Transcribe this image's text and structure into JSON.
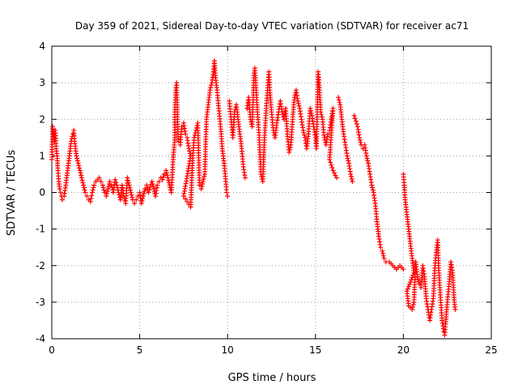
{
  "chart_data": {
    "type": "scatter",
    "title": "Day 359 of 2021, Sidereal Day-to-day VTEC variation (SDTVAR) for receiver ac71",
    "xlabel": "GPS time / hours",
    "ylabel": "SDTVAR / TECUs",
    "xlim": [
      0,
      25
    ],
    "ylim": [
      -4,
      4
    ],
    "xticks": [
      0,
      5,
      10,
      15,
      20,
      25
    ],
    "yticks": [
      -4,
      -3,
      -2,
      -1,
      0,
      1,
      2,
      3,
      4
    ],
    "grid": true,
    "marker": "plus",
    "color": "#ff0000",
    "series": [
      {
        "name": "SDTVAR",
        "points": [
          [
            0.0,
            0.9
          ],
          [
            0.05,
            1.8
          ],
          [
            0.1,
            1.6
          ],
          [
            0.15,
            1.4
          ],
          [
            0.2,
            1.7
          ],
          [
            0.25,
            1.2
          ],
          [
            0.3,
            1.0
          ],
          [
            0.35,
            0.6
          ],
          [
            0.4,
            0.3
          ],
          [
            0.45,
            0.1
          ],
          [
            0.5,
            0.0
          ],
          [
            0.55,
            -0.1
          ],
          [
            0.6,
            -0.2
          ],
          [
            0.7,
            -0.1
          ],
          [
            0.8,
            0.2
          ],
          [
            0.9,
            0.6
          ],
          [
            1.0,
            1.0
          ],
          [
            1.1,
            1.4
          ],
          [
            1.2,
            1.6
          ],
          [
            1.25,
            1.7
          ],
          [
            1.3,
            1.4
          ],
          [
            1.4,
            1.0
          ],
          [
            1.5,
            0.8
          ],
          [
            1.6,
            0.6
          ],
          [
            1.7,
            0.4
          ],
          [
            1.8,
            0.2
          ],
          [
            1.9,
            0.0
          ],
          [
            2.0,
            -0.1
          ],
          [
            2.1,
            -0.2
          ],
          [
            2.2,
            -0.25
          ],
          [
            2.3,
            0.0
          ],
          [
            2.4,
            0.2
          ],
          [
            2.5,
            0.3
          ],
          [
            2.6,
            0.35
          ],
          [
            2.7,
            0.4
          ],
          [
            2.8,
            0.3
          ],
          [
            2.9,
            0.2
          ],
          [
            3.0,
            0.0
          ],
          [
            3.1,
            -0.1
          ],
          [
            3.2,
            0.1
          ],
          [
            3.3,
            0.3
          ],
          [
            3.4,
            0.2
          ],
          [
            3.5,
            0.0
          ],
          [
            3.6,
            0.35
          ],
          [
            3.7,
            0.2
          ],
          [
            3.8,
            0.0
          ],
          [
            3.9,
            -0.2
          ],
          [
            4.0,
            0.2
          ],
          [
            4.1,
            -0.1
          ],
          [
            4.2,
            -0.3
          ],
          [
            4.3,
            0.4
          ],
          [
            4.4,
            0.2
          ],
          [
            4.5,
            0.0
          ],
          [
            4.6,
            -0.2
          ],
          [
            4.7,
            -0.3
          ],
          [
            4.8,
            -0.2
          ],
          [
            4.9,
            -0.1
          ],
          [
            5.0,
            0.0
          ],
          [
            5.1,
            -0.3
          ],
          [
            5.2,
            -0.1
          ],
          [
            5.3,
            0.1
          ],
          [
            5.4,
            0.2
          ],
          [
            5.5,
            0.0
          ],
          [
            5.6,
            0.15
          ],
          [
            5.7,
            0.3
          ],
          [
            5.8,
            0.1
          ],
          [
            5.9,
            -0.1
          ],
          [
            6.0,
            0.2
          ],
          [
            6.1,
            0.3
          ],
          [
            6.2,
            0.4
          ],
          [
            6.3,
            0.35
          ],
          [
            6.4,
            0.5
          ],
          [
            6.5,
            0.6
          ],
          [
            6.6,
            0.4
          ],
          [
            6.7,
            0.2
          ],
          [
            6.8,
            0.0
          ],
          [
            6.9,
            0.9
          ],
          [
            7.0,
            1.5
          ],
          [
            7.0,
            2.2
          ],
          [
            7.05,
            2.8
          ],
          [
            7.1,
            3.0
          ],
          [
            7.15,
            2.0
          ],
          [
            7.2,
            1.4
          ],
          [
            7.3,
            1.3
          ],
          [
            7.4,
            1.8
          ],
          [
            7.5,
            1.9
          ],
          [
            7.6,
            1.6
          ],
          [
            7.7,
            1.5
          ],
          [
            7.8,
            1.2
          ],
          [
            7.9,
            1.0
          ],
          [
            7.5,
            -0.1
          ],
          [
            7.7,
            -0.25
          ],
          [
            7.9,
            -0.4
          ],
          [
            8.0,
            0.8
          ],
          [
            8.1,
            1.5
          ],
          [
            8.2,
            1.7
          ],
          [
            8.3,
            1.9
          ],
          [
            8.4,
            0.2
          ],
          [
            8.5,
            0.1
          ],
          [
            8.6,
            0.3
          ],
          [
            8.7,
            0.5
          ],
          [
            8.8,
            2.0
          ],
          [
            8.9,
            2.4
          ],
          [
            9.0,
            2.8
          ],
          [
            9.1,
            3.0
          ],
          [
            9.2,
            3.3
          ],
          [
            9.25,
            3.6
          ],
          [
            9.3,
            3.2
          ],
          [
            9.4,
            2.8
          ],
          [
            9.5,
            2.3
          ],
          [
            9.6,
            1.8
          ],
          [
            9.7,
            1.2
          ],
          [
            9.8,
            0.8
          ],
          [
            9.9,
            0.3
          ],
          [
            9.95,
            0.0
          ],
          [
            10.0,
            -0.1
          ],
          [
            10.1,
            2.5
          ],
          [
            10.2,
            2.0
          ],
          [
            10.3,
            1.5
          ],
          [
            10.4,
            2.2
          ],
          [
            10.5,
            2.4
          ],
          [
            10.6,
            2.0
          ],
          [
            10.7,
            1.6
          ],
          [
            10.8,
            1.2
          ],
          [
            10.9,
            0.7
          ],
          [
            11.0,
            0.4
          ],
          [
            11.1,
            2.3
          ],
          [
            11.2,
            2.6
          ],
          [
            11.3,
            2.0
          ],
          [
            11.4,
            1.8
          ],
          [
            11.5,
            3.2
          ],
          [
            11.55,
            3.4
          ],
          [
            11.6,
            3.0
          ],
          [
            11.7,
            2.2
          ],
          [
            11.8,
            1.5
          ],
          [
            11.9,
            0.5
          ],
          [
            12.0,
            0.3
          ],
          [
            12.1,
            1.5
          ],
          [
            12.2,
            2.3
          ],
          [
            12.3,
            3.0
          ],
          [
            12.35,
            3.3
          ],
          [
            12.4,
            2.8
          ],
          [
            12.5,
            2.2
          ],
          [
            12.6,
            1.7
          ],
          [
            12.7,
            1.5
          ],
          [
            12.8,
            1.9
          ],
          [
            12.9,
            2.2
          ],
          [
            13.0,
            2.5
          ],
          [
            13.1,
            2.2
          ],
          [
            13.2,
            2.0
          ],
          [
            13.3,
            2.3
          ],
          [
            13.4,
            1.6
          ],
          [
            13.5,
            1.1
          ],
          [
            13.6,
            1.3
          ],
          [
            13.7,
            2.0
          ],
          [
            13.8,
            2.6
          ],
          [
            13.9,
            2.8
          ],
          [
            14.0,
            2.5
          ],
          [
            14.1,
            2.3
          ],
          [
            14.2,
            2.0
          ],
          [
            14.3,
            1.7
          ],
          [
            14.4,
            1.5
          ],
          [
            14.5,
            1.2
          ],
          [
            14.6,
            1.6
          ],
          [
            14.7,
            2.3
          ],
          [
            14.8,
            2.1
          ],
          [
            14.9,
            1.8
          ],
          [
            15.0,
            1.5
          ],
          [
            15.05,
            1.2
          ],
          [
            15.1,
            2.2
          ],
          [
            15.15,
            3.3
          ],
          [
            15.2,
            3.0
          ],
          [
            15.3,
            2.2
          ],
          [
            15.4,
            2.0
          ],
          [
            15.5,
            1.5
          ],
          [
            15.6,
            1.3
          ],
          [
            15.7,
            1.6
          ],
          [
            15.8,
            1.7
          ],
          [
            15.9,
            2.0
          ],
          [
            16.0,
            2.3
          ],
          [
            15.8,
            0.9
          ],
          [
            16.0,
            0.6
          ],
          [
            16.2,
            0.4
          ],
          [
            16.3,
            2.6
          ],
          [
            16.4,
            2.4
          ],
          [
            16.5,
            2.0
          ],
          [
            16.6,
            1.6
          ],
          [
            16.7,
            1.3
          ],
          [
            16.8,
            1.0
          ],
          [
            16.9,
            0.8
          ],
          [
            17.0,
            0.5
          ],
          [
            17.1,
            0.3
          ],
          [
            17.2,
            2.1
          ],
          [
            17.4,
            1.8
          ],
          [
            17.5,
            1.5
          ],
          [
            17.6,
            1.3
          ],
          [
            17.7,
            1.2
          ],
          [
            17.8,
            1.3
          ],
          [
            17.9,
            1.0
          ],
          [
            18.0,
            0.8
          ],
          [
            18.1,
            0.5
          ],
          [
            18.2,
            0.2
          ],
          [
            18.3,
            0.0
          ],
          [
            18.4,
            -0.3
          ],
          [
            18.5,
            -0.8
          ],
          [
            18.6,
            -1.2
          ],
          [
            18.7,
            -1.5
          ],
          [
            18.8,
            -1.6
          ],
          [
            18.9,
            -1.8
          ],
          [
            19.0,
            -1.9
          ],
          [
            19.2,
            -1.9
          ],
          [
            19.4,
            -2.0
          ],
          [
            19.6,
            -2.1
          ],
          [
            19.8,
            -2.0
          ],
          [
            20.0,
            -2.1
          ],
          [
            20.0,
            0.5
          ],
          [
            20.05,
            0.2
          ],
          [
            20.1,
            -0.2
          ],
          [
            20.2,
            -0.6
          ],
          [
            20.3,
            -1.0
          ],
          [
            20.4,
            -1.4
          ],
          [
            20.5,
            -1.8
          ],
          [
            20.6,
            -2.2
          ],
          [
            20.2,
            -2.7
          ],
          [
            20.3,
            -3.1
          ],
          [
            20.5,
            -3.2
          ],
          [
            20.6,
            -3.0
          ],
          [
            20.7,
            -1.9
          ],
          [
            20.8,
            -2.3
          ],
          [
            20.9,
            -2.5
          ],
          [
            21.0,
            -2.6
          ],
          [
            21.1,
            -2.0
          ],
          [
            21.2,
            -2.3
          ],
          [
            21.3,
            -2.9
          ],
          [
            21.4,
            -3.2
          ],
          [
            21.5,
            -3.5
          ],
          [
            21.6,
            -3.2
          ],
          [
            21.7,
            -2.9
          ],
          [
            21.8,
            -2.0
          ],
          [
            21.9,
            -1.5
          ],
          [
            21.95,
            -1.3
          ],
          [
            22.0,
            -2.0
          ],
          [
            22.1,
            -2.8
          ],
          [
            22.2,
            -3.5
          ],
          [
            22.3,
            -3.8
          ],
          [
            22.35,
            -3.9
          ],
          [
            22.4,
            -3.6
          ],
          [
            22.5,
            -3.0
          ],
          [
            22.6,
            -2.5
          ],
          [
            22.7,
            -1.9
          ],
          [
            22.8,
            -2.2
          ],
          [
            22.85,
            -2.6
          ],
          [
            22.9,
            -3.0
          ],
          [
            22.95,
            -3.2
          ]
        ]
      }
    ]
  }
}
